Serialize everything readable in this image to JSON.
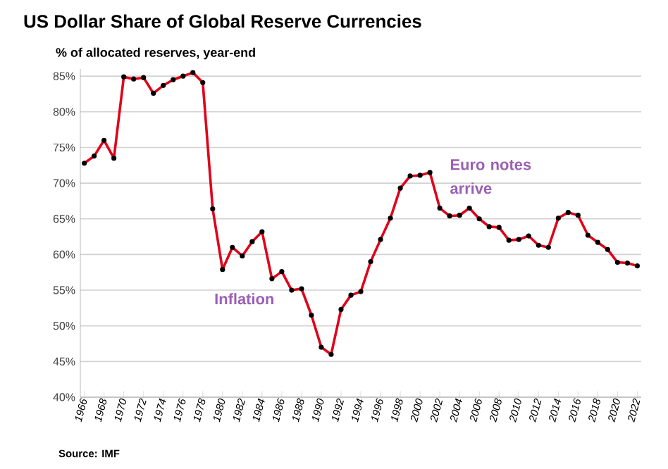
{
  "chart_data": {
    "type": "line",
    "title": "US Dollar Share of Global  Reserve Currencies",
    "subtitle": "% of allocated reserves, year-end",
    "x": [
      1966,
      1967,
      1968,
      1969,
      1970,
      1971,
      1972,
      1973,
      1974,
      1975,
      1976,
      1977,
      1978,
      1979,
      1980,
      1981,
      1982,
      1983,
      1984,
      1985,
      1986,
      1987,
      1988,
      1989,
      1990,
      1991,
      1992,
      1993,
      1994,
      1995,
      1996,
      1997,
      1998,
      1999,
      2000,
      2001,
      2002,
      2003,
      2004,
      2005,
      2006,
      2007,
      2008,
      2009,
      2010,
      2011,
      2012,
      2013,
      2014,
      2015,
      2016,
      2017,
      2018,
      2019,
      2020,
      2021,
      2022
    ],
    "series": [
      {
        "color": "#e0001a",
        "values": [
          72.8,
          73.8,
          76.0,
          73.5,
          84.9,
          84.6,
          84.8,
          82.6,
          83.7,
          84.5,
          85.0,
          85.5,
          84.1,
          66.4,
          57.9,
          61.0,
          59.8,
          61.8,
          63.2,
          56.6,
          57.6,
          55.0,
          55.2,
          51.5,
          47.0,
          46.0,
          52.3,
          54.3,
          54.8,
          59.0,
          62.1,
          65.1,
          69.3,
          71.0,
          71.1,
          71.5,
          66.5,
          65.4,
          65.5,
          66.5,
          65.0,
          63.9,
          63.8,
          62.0,
          62.1,
          62.6,
          61.3,
          61.0,
          65.1,
          65.9,
          65.5,
          62.7,
          61.7,
          60.7,
          58.9,
          58.8,
          58.4
        ]
      }
    ],
    "xlim": [
      1965.6,
      2022.4
    ],
    "xticks": [
      1966,
      1968,
      1970,
      1972,
      1974,
      1976,
      1978,
      1980,
      1982,
      1984,
      1986,
      1988,
      1990,
      1992,
      1994,
      1996,
      1998,
      2000,
      2002,
      2004,
      2006,
      2008,
      2010,
      2012,
      2014,
      2016,
      2018,
      2020,
      2022
    ],
    "ylim": [
      40,
      86
    ],
    "yticks": [
      {
        "value": 40,
        "label": "40%"
      },
      {
        "value": 45,
        "label": "45%"
      },
      {
        "value": 50,
        "label": "50%"
      },
      {
        "value": 55,
        "label": "55%"
      },
      {
        "value": 60,
        "label": "60%"
      },
      {
        "value": 65,
        "label": "65%"
      },
      {
        "value": 70,
        "label": "70%"
      },
      {
        "value": 75,
        "label": "75%"
      },
      {
        "value": 80,
        "label": "80%"
      },
      {
        "value": 85,
        "label": "85%"
      }
    ],
    "grid": "y",
    "marker": "circle",
    "line_style": "solid",
    "annotations": [
      "Euro notes arrive",
      "Inflation",
      "Source: IMF"
    ]
  }
}
